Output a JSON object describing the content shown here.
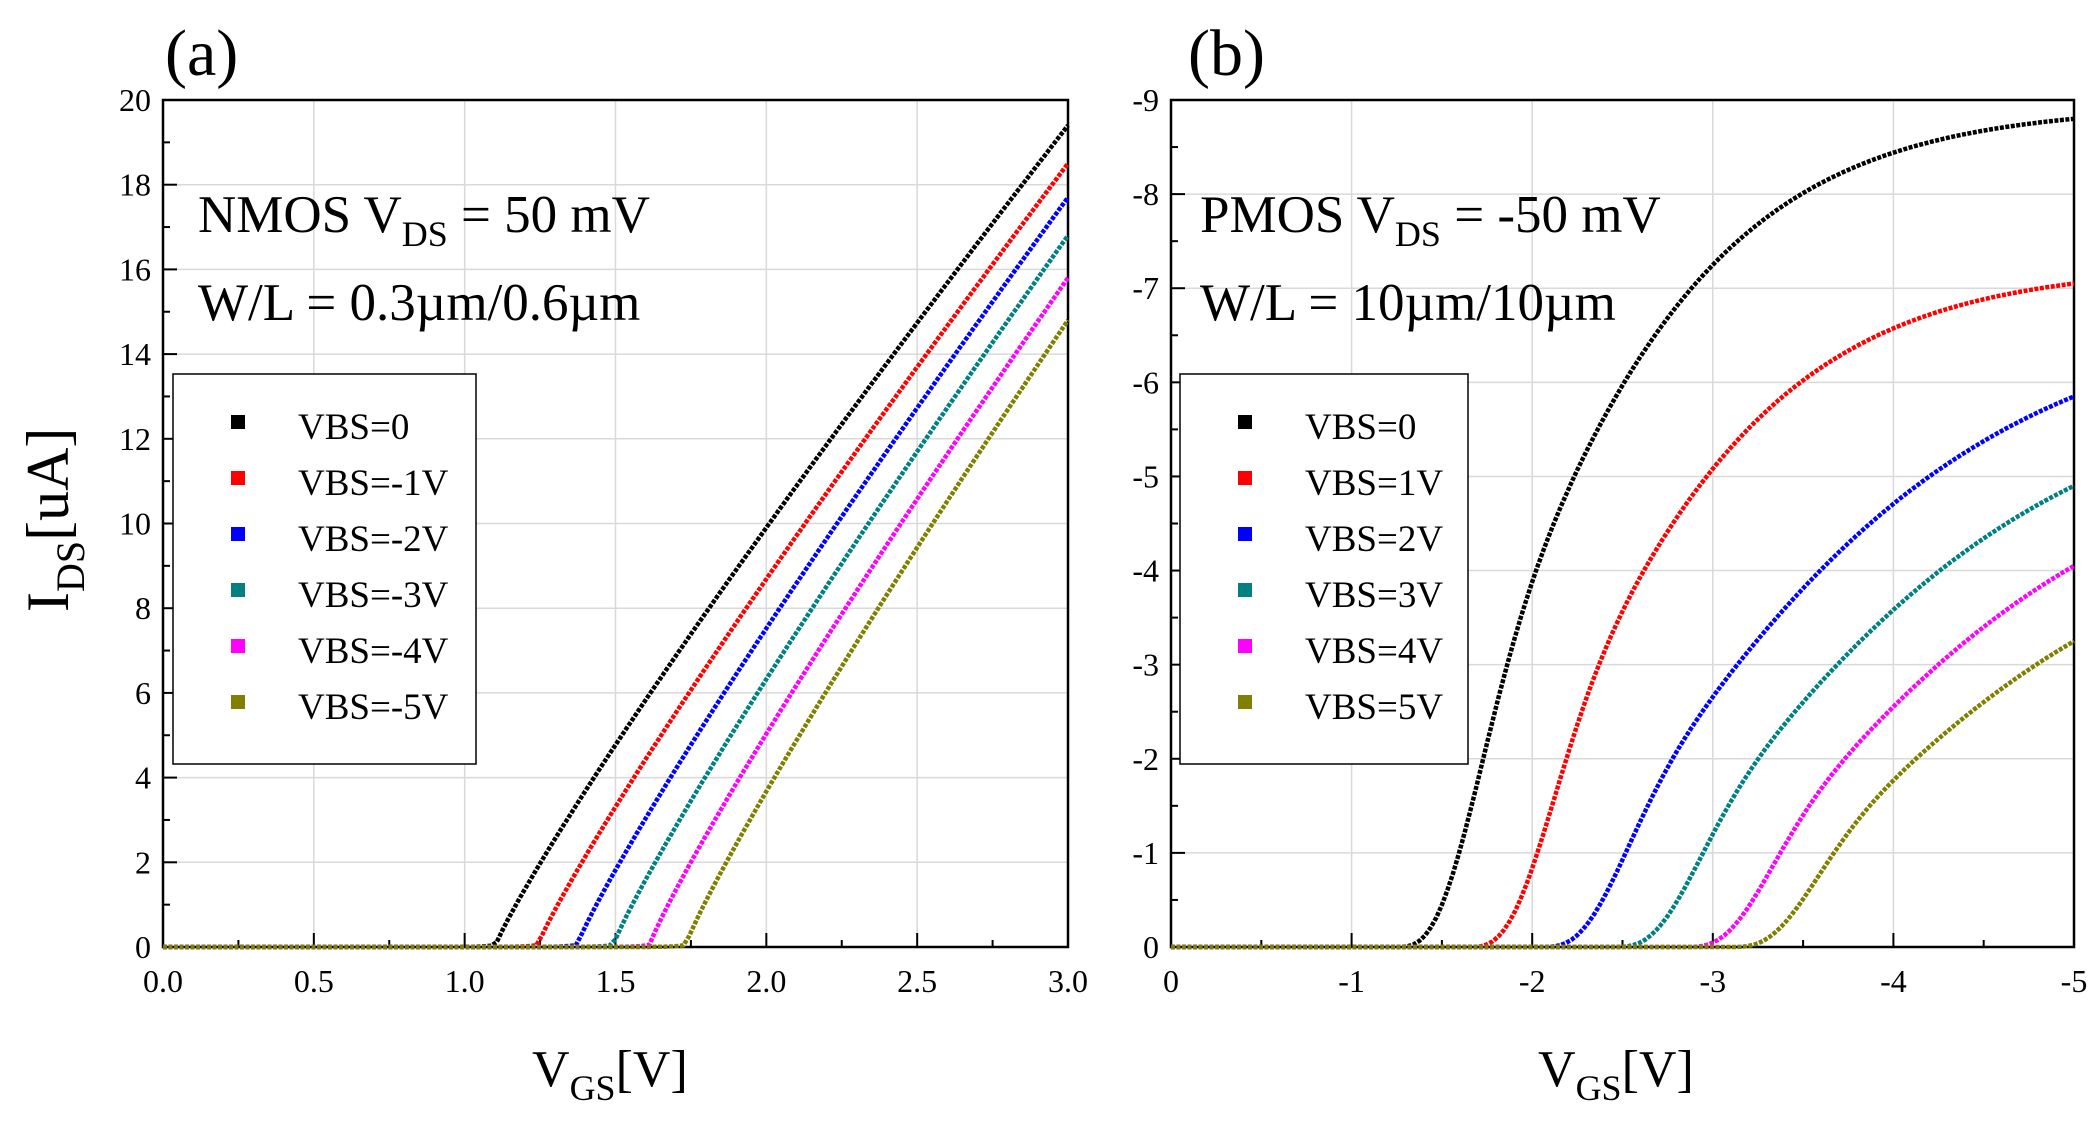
{
  "chart_data": [
    {
      "type": "line",
      "panel_label": "(a)",
      "title": "",
      "annotation_line1": {
        "main": "NMOS V",
        "sub": "DS",
        "rest": " = 50 mV"
      },
      "annotation_line2": "W/L = 0.3µm/0.6µm",
      "xlabel": {
        "main": "V",
        "sub": "GS",
        "rest": "[V]"
      },
      "ylabel": {
        "main": "I",
        "sub": "DS",
        "rest": "[uA]"
      },
      "xlim": [
        0,
        3
      ],
      "ylim": [
        0,
        20
      ],
      "xticks": [
        "0.0",
        "0.5",
        "1.0",
        "1.5",
        "2.0",
        "2.5",
        "3.0"
      ],
      "yticks": [
        "0",
        "2",
        "4",
        "6",
        "8",
        "10",
        "12",
        "14",
        "16",
        "18",
        "20"
      ],
      "grid": true,
      "legend_position": "middle-left",
      "series": [
        {
          "name": "VBS=0",
          "color": "#000000",
          "vth": 1.1,
          "endval": 19.4
        },
        {
          "name": "VBS=-1V",
          "color": "#ff0000",
          "vth": 1.24,
          "endval": 18.5
        },
        {
          "name": "VBS=-2V",
          "color": "#0000ff",
          "vth": 1.37,
          "endval": 17.7
        },
        {
          "name": "VBS=-3V",
          "color": "#008080",
          "vth": 1.49,
          "endval": 16.8
        },
        {
          "name": "VBS=-4V",
          "color": "#ff00ff",
          "vth": 1.61,
          "endval": 15.8
        },
        {
          "name": "VBS=-5V",
          "color": "#808000",
          "vth": 1.73,
          "endval": 14.8
        }
      ]
    },
    {
      "type": "line",
      "panel_label": "(b)",
      "title": "",
      "annotation_line1": {
        "main": "PMOS V",
        "sub": "DS",
        "rest": " = -50 mV"
      },
      "annotation_line2": "W/L = 10µm/10µm",
      "xlabel": {
        "main": "V",
        "sub": "GS",
        "rest": "[V]"
      },
      "ylabel": null,
      "xlim": [
        0,
        -5
      ],
      "ylim": [
        0,
        -9
      ],
      "xticks": [
        "0",
        "-1",
        "-2",
        "-3",
        "-4",
        "-5"
      ],
      "yticks": [
        "0",
        "-1",
        "-2",
        "-3",
        "-4",
        "-5",
        "-6",
        "-7",
        "-8",
        "-9"
      ],
      "grid": true,
      "legend_position": "middle-left",
      "series": [
        {
          "name": "VBS=0",
          "color": "#000000",
          "vth": 1.25,
          "endval": -8.8
        },
        {
          "name": "VBS=1V",
          "color": "#ff0000",
          "vth": 1.65,
          "endval": -7.05
        },
        {
          "name": "VBS=2V",
          "color": "#0000ff",
          "vth": 2.05,
          "endval": -5.85
        },
        {
          "name": "VBS=3V",
          "color": "#008080",
          "vth": 2.45,
          "endval": -4.9
        },
        {
          "name": "VBS=4V",
          "color": "#ff00ff",
          "vth": 2.85,
          "endval": -4.05
        },
        {
          "name": "VBS=5V",
          "color": "#808000",
          "vth": 3.1,
          "endval": -3.25
        }
      ]
    }
  ]
}
